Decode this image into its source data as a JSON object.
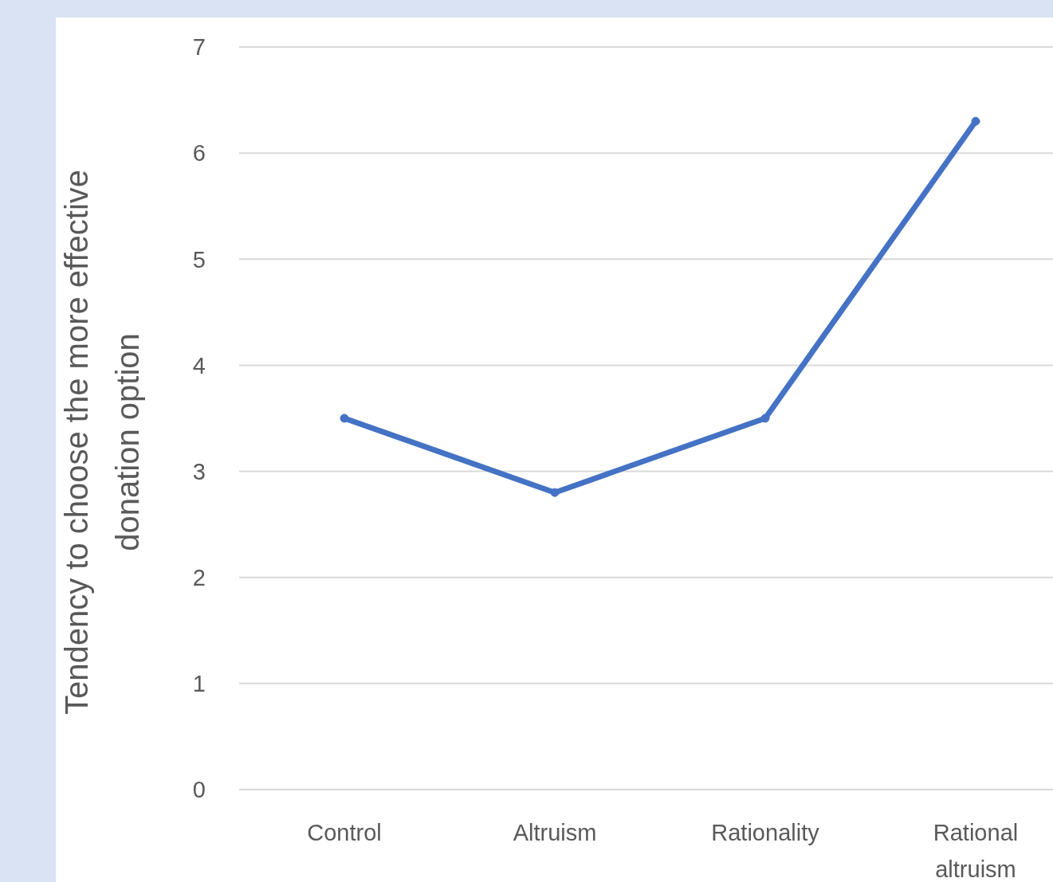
{
  "chart_data": {
    "type": "line",
    "ylabel": "Tendency to choose the more effective donation option",
    "categories": [
      "Control",
      "Altruism",
      "Rationality",
      "Rational altruism"
    ],
    "series": [
      {
        "color": "#4472c4",
        "values": [
          3.5,
          2.8,
          3.5,
          6.3
        ]
      }
    ],
    "ylim": [
      0,
      7
    ],
    "yticks": [
      0,
      1,
      2,
      3,
      4,
      5,
      6,
      7
    ],
    "grid": "y",
    "legend": false,
    "marker": "circle",
    "line_style": "solid"
  }
}
